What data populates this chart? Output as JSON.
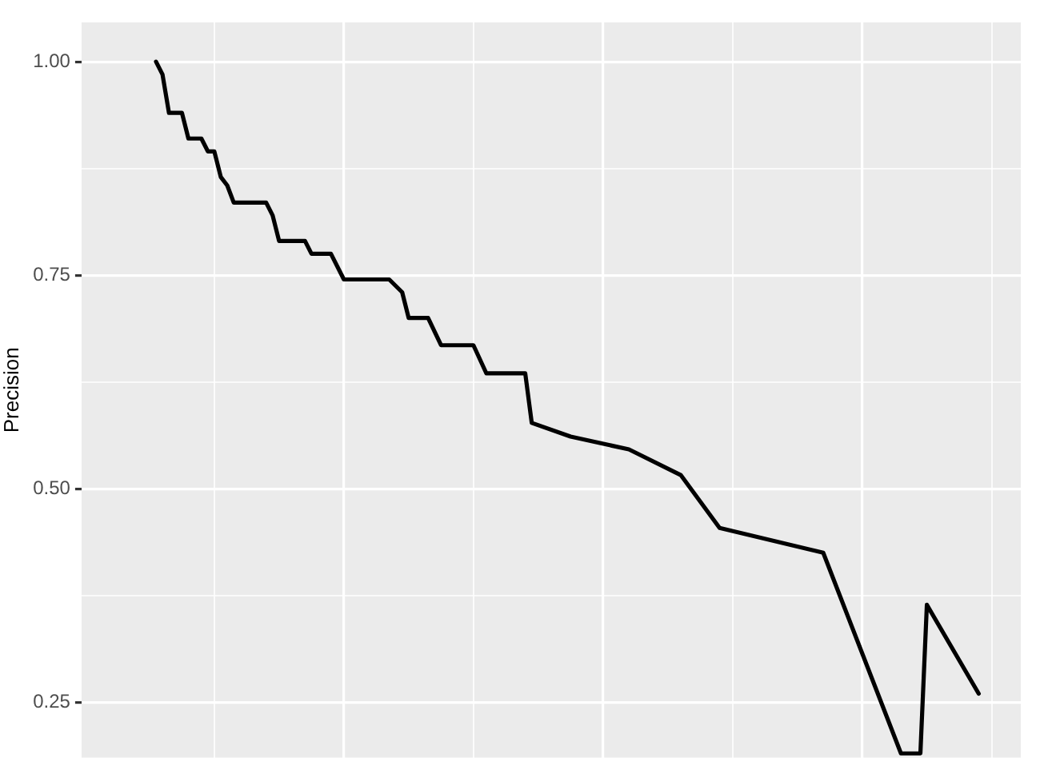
{
  "chart_data": {
    "type": "line",
    "ylabel": "Precision",
    "categories": [
      null,
      null,
      null,
      null,
      null,
      null,
      null,
      null,
      null,
      null,
      null,
      null,
      null,
      null,
      null,
      null,
      null,
      null,
      null,
      null,
      null,
      null,
      null,
      null,
      null,
      null,
      null,
      null,
      null,
      null,
      null,
      null,
      null,
      null,
      null,
      null,
      null,
      null,
      null,
      null,
      null,
      null,
      null,
      null,
      null,
      null,
      null,
      null,
      null,
      null,
      null,
      null,
      null,
      null,
      null,
      null,
      null,
      null,
      null,
      null,
      null,
      null,
      null,
      null,
      null,
      null,
      null,
      null,
      null,
      null,
      null,
      null,
      null,
      null,
      null,
      null,
      null,
      null,
      null,
      null,
      null,
      null,
      null,
      null,
      null,
      null,
      null,
      null,
      null,
      null,
      null,
      null,
      null,
      null,
      null,
      null,
      null,
      null,
      null,
      null,
      null,
      null,
      null,
      null,
      null,
      null,
      null,
      null,
      null,
      null,
      null,
      null,
      null,
      null,
      null,
      null,
      null,
      null,
      null,
      null,
      null,
      null,
      null,
      null,
      null,
      null,
      null,
      null,
      null,
      null,
      null,
      null,
      null,
      null,
      null,
      null,
      null,
      null,
      null,
      null,
      null,
      null,
      null,
      null,
      null
    ],
    "series": [
      {
        "color": "#000000",
        "values": [
          null,
          null,
          null,
          null,
          null,
          null,
          null,
          null,
          null,
          null,
          null,
          1.0,
          0.985,
          0.94,
          null,
          0.94,
          0.91,
          null,
          0.91,
          0.895,
          0.895,
          0.865,
          0.855,
          0.835,
          null,
          null,
          null,
          null,
          0.835,
          0.82,
          0.79,
          null,
          null,
          null,
          0.79,
          0.775,
          null,
          null,
          0.775,
          null,
          0.745,
          null,
          null,
          null,
          null,
          null,
          null,
          0.745,
          null,
          0.73,
          0.7,
          null,
          null,
          0.7,
          null,
          0.668,
          null,
          null,
          null,
          null,
          0.668,
          null,
          0.635,
          null,
          null,
          null,
          null,
          null,
          0.635,
          0.577,
          null,
          null,
          null,
          null,
          null,
          0.561,
          null,
          null,
          null,
          null,
          null,
          null,
          null,
          null,
          0.546,
          null,
          null,
          null,
          null,
          null,
          null,
          null,
          0.516,
          null,
          null,
          null,
          null,
          null,
          0.454,
          null,
          null,
          null,
          null,
          null,
          null,
          null,
          null,
          null,
          null,
          null,
          null,
          null,
          null,
          null,
          0.425,
          null,
          null,
          null,
          null,
          null,
          null,
          null,
          null,
          null,
          null,
          null,
          0.19,
          null,
          null,
          0.19,
          0.364,
          null,
          null,
          null,
          null,
          null,
          null,
          null,
          0.26,
          null,
          null,
          null,
          null,
          null,
          null
        ]
      }
    ],
    "ylim": [
      0.185,
      1.046
    ],
    "yticks": [
      {
        "value": 0.25,
        "label": "0.25"
      },
      {
        "value": 0.375,
        "label": null
      },
      {
        "value": 0.5,
        "label": "0.50"
      },
      {
        "value": 0.625,
        "label": null
      },
      {
        "value": 0.75,
        "label": "0.75"
      },
      {
        "value": 0.875,
        "label": null
      },
      {
        "value": 1.0,
        "label": "1.00"
      }
    ],
    "grid": true,
    "tick_labels": "y",
    "legend": false,
    "marker": "none",
    "line_style": "solid"
  }
}
